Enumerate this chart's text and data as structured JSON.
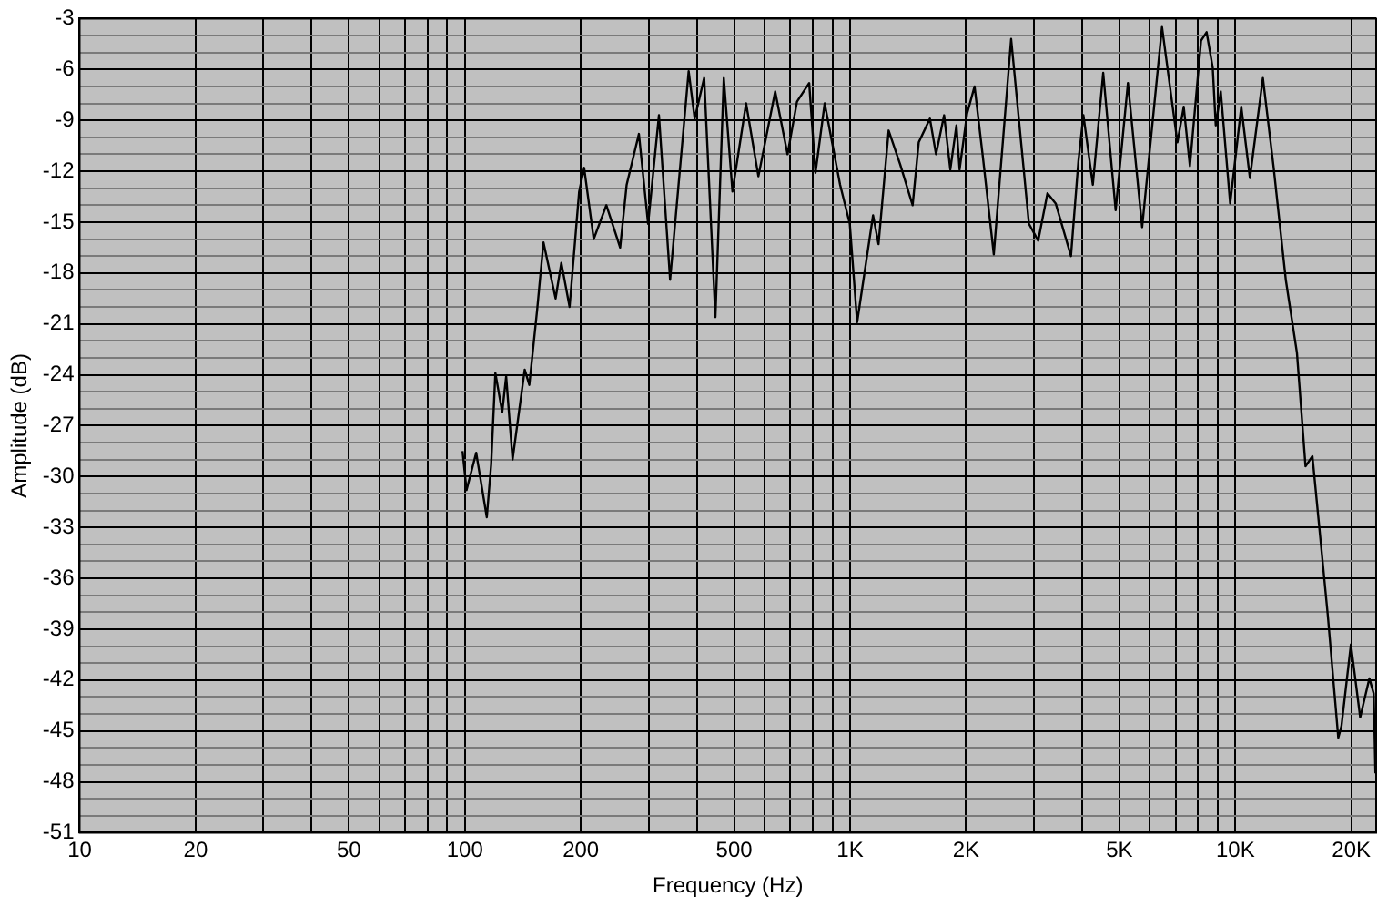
{
  "chart_data": {
    "type": "line",
    "xlabel": "Frequency (Hz)",
    "ylabel": "Amplitude (dB)",
    "log": "x",
    "grid": true,
    "legend": false,
    "marker": "none",
    "line_style": "solid",
    "xlim": [
      10,
      23200
    ],
    "ylim": [
      -51,
      -3
    ],
    "xticks": [
      10,
      20,
      {
        "value": 30,
        "label": null
      },
      {
        "value": 40,
        "label": null
      },
      50,
      {
        "value": 60,
        "label": null
      },
      {
        "value": 70,
        "label": null
      },
      {
        "value": 80,
        "label": null
      },
      {
        "value": 90,
        "label": null
      },
      100,
      200,
      {
        "value": 300,
        "label": null
      },
      {
        "value": 400,
        "label": null
      },
      500,
      {
        "value": 600,
        "label": null
      },
      {
        "value": 700,
        "label": null
      },
      {
        "value": 800,
        "label": null
      },
      {
        "value": 900,
        "label": null
      },
      {
        "value": 1000,
        "label": "1K"
      },
      {
        "value": 2000,
        "label": "2K"
      },
      {
        "value": 3000,
        "label": null
      },
      {
        "value": 4000,
        "label": null
      },
      {
        "value": 5000,
        "label": "5K"
      },
      {
        "value": 6000,
        "label": null
      },
      {
        "value": 7000,
        "label": null
      },
      {
        "value": 8000,
        "label": null
      },
      {
        "value": 9000,
        "label": null
      },
      {
        "value": 10000,
        "label": "10K"
      },
      {
        "value": 20000,
        "label": "20K"
      }
    ],
    "yticks": [
      -51,
      {
        "value": -50,
        "label": null
      },
      {
        "value": -49,
        "label": null
      },
      -48,
      {
        "value": -47,
        "label": null
      },
      {
        "value": -46,
        "label": null
      },
      -45,
      {
        "value": -44,
        "label": null
      },
      {
        "value": -43,
        "label": null
      },
      -42,
      {
        "value": -41,
        "label": null
      },
      {
        "value": -40,
        "label": null
      },
      -39,
      {
        "value": -38,
        "label": null
      },
      {
        "value": -37,
        "label": null
      },
      -36,
      {
        "value": -35,
        "label": null
      },
      {
        "value": -34,
        "label": null
      },
      -33,
      {
        "value": -32,
        "label": null
      },
      {
        "value": -31,
        "label": null
      },
      -30,
      {
        "value": -29,
        "label": null
      },
      {
        "value": -28,
        "label": null
      },
      -27,
      {
        "value": -26,
        "label": null
      },
      {
        "value": -25,
        "label": null
      },
      -24,
      {
        "value": -23,
        "label": null
      },
      {
        "value": -22,
        "label": null
      },
      -21,
      {
        "value": -20,
        "label": null
      },
      {
        "value": -19,
        "label": null
      },
      -18,
      {
        "value": -17,
        "label": null
      },
      {
        "value": -16,
        "label": null
      },
      -15,
      {
        "value": -14,
        "label": null
      },
      {
        "value": -13,
        "label": null
      },
      -12,
      {
        "value": -11,
        "label": null
      },
      {
        "value": -10,
        "label": null
      },
      -9,
      {
        "value": -8,
        "label": null
      },
      {
        "value": -7,
        "label": null
      },
      -6,
      {
        "value": -5,
        "label": null
      },
      {
        "value": -4,
        "label": null
      },
      -3
    ],
    "series": [
      {
        "color": "#000000",
        "x": [
          98.6,
          101,
          107,
          114,
          117,
          120,
          125,
          128,
          133,
          143,
          147,
          154,
          160,
          172,
          178,
          187,
          198,
          204,
          216,
          233,
          253,
          263,
          283,
          299,
          319,
          341,
          381,
          395,
          418,
          447,
          470,
          495,
          537,
          578,
          639,
          688,
          728,
          783,
          813,
          859,
          942,
          998,
          1043,
          1147,
          1185,
          1259,
          1349,
          1453,
          1507,
          1611,
          1671,
          1754,
          1820,
          1888,
          1924,
          2012,
          2104,
          2207,
          2360,
          2618,
          2912,
          3078,
          3253,
          3417,
          3743,
          3914,
          4033,
          4266,
          4539,
          4889,
          5262,
          5728,
          6451,
          7073,
          7345,
          7621,
          8147,
          8420,
          8735,
          8894,
          9165,
          9695,
          10360,
          10910,
          11790,
          12560,
          13520,
          14450,
          15210,
          15850,
          17380,
          18500,
          18860,
          19950,
          21090,
          22280,
          22860,
          23100
        ],
        "values": [
          -28.5,
          -30.8,
          -28.6,
          -32.4,
          -29.3,
          -23.9,
          -26.2,
          -24.1,
          -29.0,
          -23.7,
          -24.6,
          -20.2,
          -16.2,
          -19.5,
          -17.4,
          -20.0,
          -13.2,
          -11.8,
          -16.0,
          -14.0,
          -16.5,
          -12.8,
          -9.8,
          -15.1,
          -8.7,
          -18.4,
          -6.1,
          -8.9,
          -6.5,
          -20.6,
          -6.5,
          -13.2,
          -8.0,
          -12.3,
          -7.3,
          -11.0,
          -7.9,
          -6.8,
          -12.1,
          -8.0,
          -12.8,
          -15.1,
          -20.9,
          -14.6,
          -16.3,
          -9.6,
          -11.6,
          -14.0,
          -10.3,
          -8.9,
          -11.0,
          -8.7,
          -11.9,
          -9.3,
          -11.9,
          -8.6,
          -7.0,
          -11.0,
          -16.9,
          -4.2,
          -15.1,
          -16.1,
          -13.3,
          -13.9,
          -17.0,
          -11.4,
          -8.7,
          -12.8,
          -6.2,
          -14.3,
          -6.8,
          -15.3,
          -3.5,
          -10.3,
          -8.2,
          -11.7,
          -4.3,
          -3.8,
          -5.9,
          -9.3,
          -7.3,
          -13.9,
          -8.2,
          -12.4,
          -6.5,
          -11.7,
          -18.4,
          -22.7,
          -29.4,
          -28.8,
          -38.2,
          -45.4,
          -44.7,
          -39.9,
          -44.2,
          -41.9,
          -42.8,
          -47.5
        ]
      }
    ]
  }
}
